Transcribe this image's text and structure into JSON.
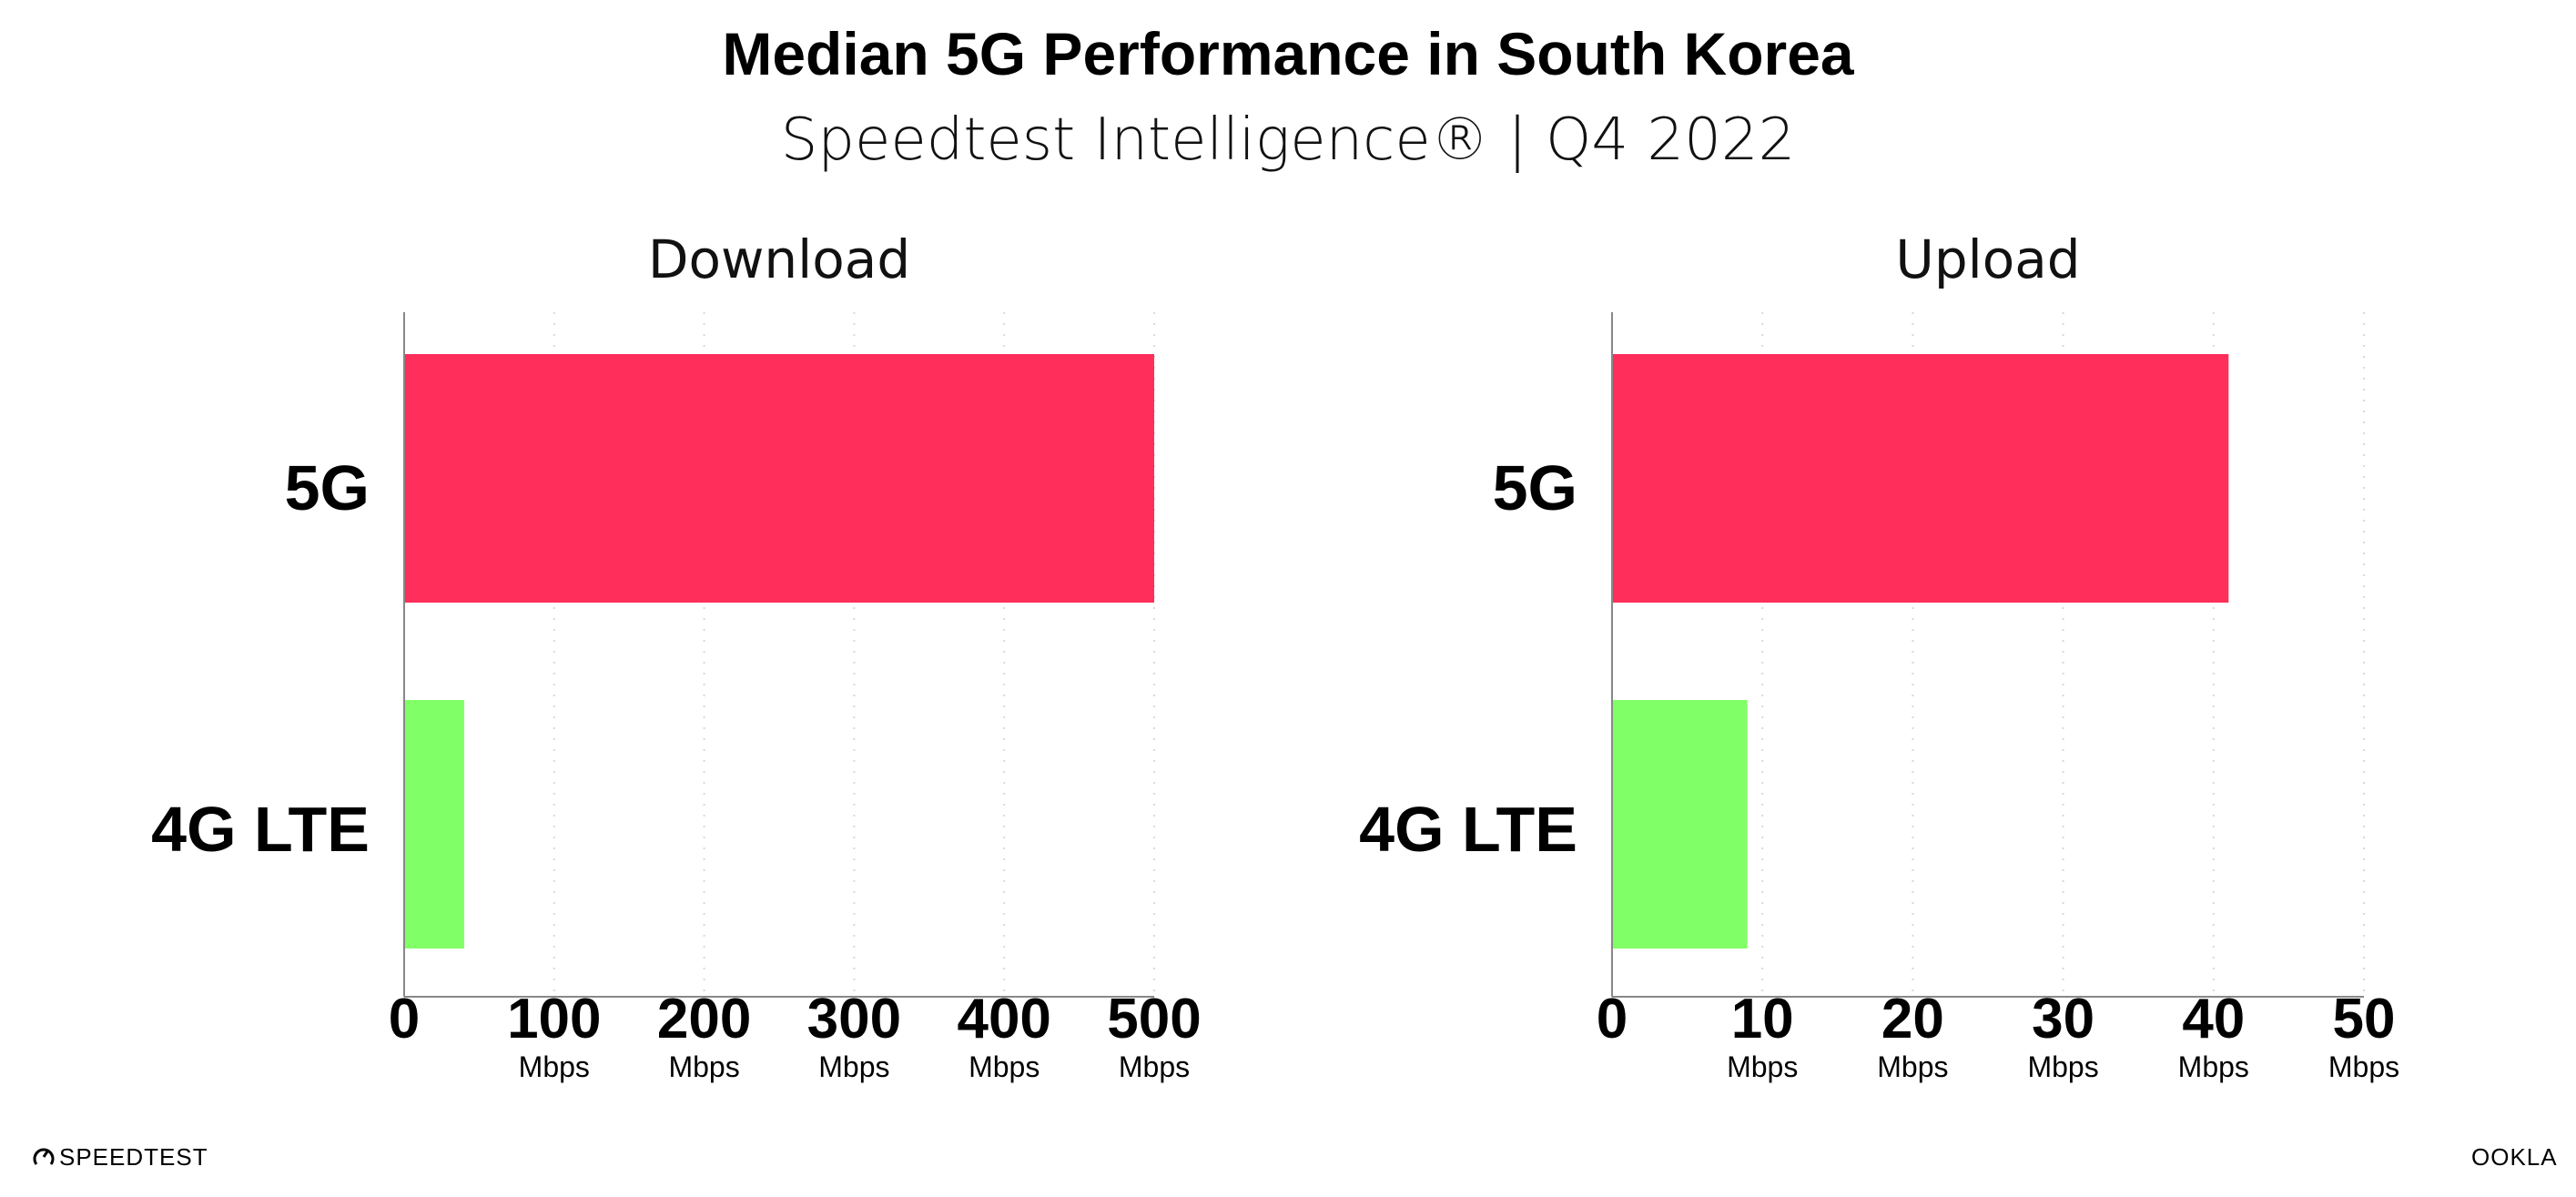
{
  "title": "Median 5G Performance in South Korea",
  "subtitle": "Speedtest Intelligence® | Q4 2022",
  "colors": {
    "5G": "#ff2e5b",
    "4G LTE": "#80ff66",
    "axis": "#888888",
    "grid": "#d8d8e0"
  },
  "chart_data": [
    {
      "type": "bar",
      "orientation": "horizontal",
      "title": "Download",
      "categories": [
        "5G",
        "4G LTE"
      ],
      "values": [
        500,
        40
      ],
      "xlim": [
        0,
        500
      ],
      "xticks": [
        "0",
        "100",
        "200",
        "300",
        "400",
        "500"
      ],
      "tick_unit": "Mbps",
      "grid": "vertical dotted"
    },
    {
      "type": "bar",
      "orientation": "horizontal",
      "title": "Upload",
      "categories": [
        "5G",
        "4G LTE"
      ],
      "values": [
        41,
        9
      ],
      "xlim": [
        0,
        50
      ],
      "xticks": [
        "0",
        "10",
        "20",
        "30",
        "40",
        "50"
      ],
      "tick_unit": "Mbps",
      "grid": "vertical dotted"
    }
  ],
  "footer": {
    "left_logo": "SPEEDTEST",
    "right_logo": "OOKLA"
  }
}
